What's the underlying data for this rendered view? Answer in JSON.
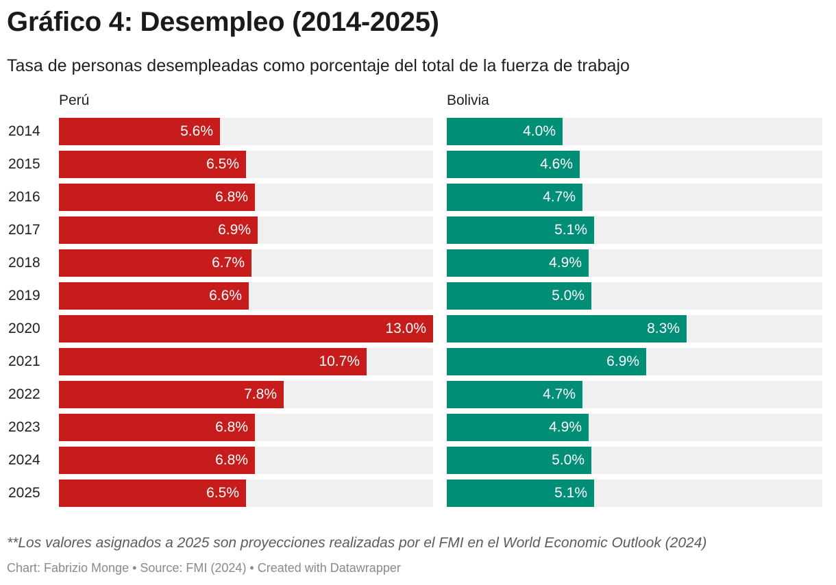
{
  "header": {
    "title": "Gráfico 4: Desempleo (2014-2025)",
    "subtitle": "Tasa de personas desempleadas como porcentaje del total de la fuerza de trabajo"
  },
  "notes": {
    "note": "**Los valores asignados a 2025 son proyecciones realizadas por el FMI en el World Economic Outlook (2024)",
    "footer": "Chart: Fabrizio Monge • Source: FMI (2024) • Created with Datawrapper"
  },
  "colors": {
    "peru": "#c71c1c",
    "bolivia": "#008f76",
    "track": "#f0f0f0"
  },
  "chart_data": {
    "type": "bar",
    "orientation": "horizontal",
    "title": "Gráfico 4: Desempleo (2014-2025)",
    "subtitle": "Tasa de personas desempleadas como porcentaje del total de la fuerza de trabajo",
    "categories": [
      "2014",
      "2015",
      "2016",
      "2017",
      "2018",
      "2019",
      "2020",
      "2021",
      "2022",
      "2023",
      "2024",
      "2025"
    ],
    "xlim": [
      0,
      13
    ],
    "grid": false,
    "legend": "none",
    "series": [
      {
        "name": "Perú",
        "values": [
          5.6,
          6.5,
          6.8,
          6.9,
          6.7,
          6.6,
          13.0,
          10.7,
          7.8,
          6.8,
          6.8,
          6.5
        ],
        "labels": [
          "5.6%",
          "6.5%",
          "6.8%",
          "6.9%",
          "6.7%",
          "6.6%",
          "13.0%",
          "10.7%",
          "7.8%",
          "6.8%",
          "6.8%",
          "6.5%"
        ]
      },
      {
        "name": "Bolivia",
        "values": [
          4.0,
          4.6,
          4.7,
          5.1,
          4.9,
          5.0,
          8.3,
          6.9,
          4.7,
          4.9,
          5.0,
          5.1
        ],
        "labels": [
          "4.0%",
          "4.6%",
          "4.7%",
          "5.1%",
          "4.9%",
          "5.0%",
          "8.3%",
          "6.9%",
          "4.7%",
          "4.9%",
          "5.0%",
          "5.1%"
        ]
      }
    ]
  }
}
